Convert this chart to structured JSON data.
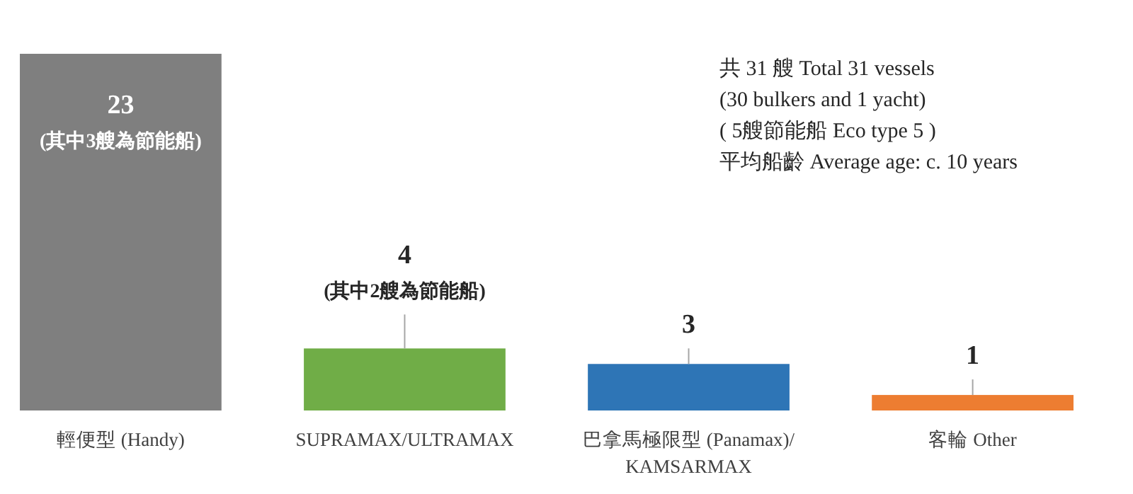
{
  "chart_data": {
    "type": "bar",
    "categories": [
      "輕便型 (Handy)",
      "SUPRAMAX/ULTRAMAX",
      "巴拿馬極限型 (Panamax)/ KAMSARMAX",
      "客輪 Other"
    ],
    "values": [
      23,
      4,
      3,
      1
    ],
    "colors": [
      "#7f7f7f",
      "#70ad47",
      "#2e75b6",
      "#ed7d31"
    ],
    "value_labels": [
      "23 (其中3艘為節能船)",
      "4 (其中2艘為節能船)",
      "3",
      "1"
    ],
    "annotations": [
      "共 31 艘 Total 31 vessels",
      "(30 bulkers and 1 yacht)",
      "( 5艘節能船 Eco type 5 )",
      "平均船齡 Average age: c. 10 years"
    ]
  }
}
